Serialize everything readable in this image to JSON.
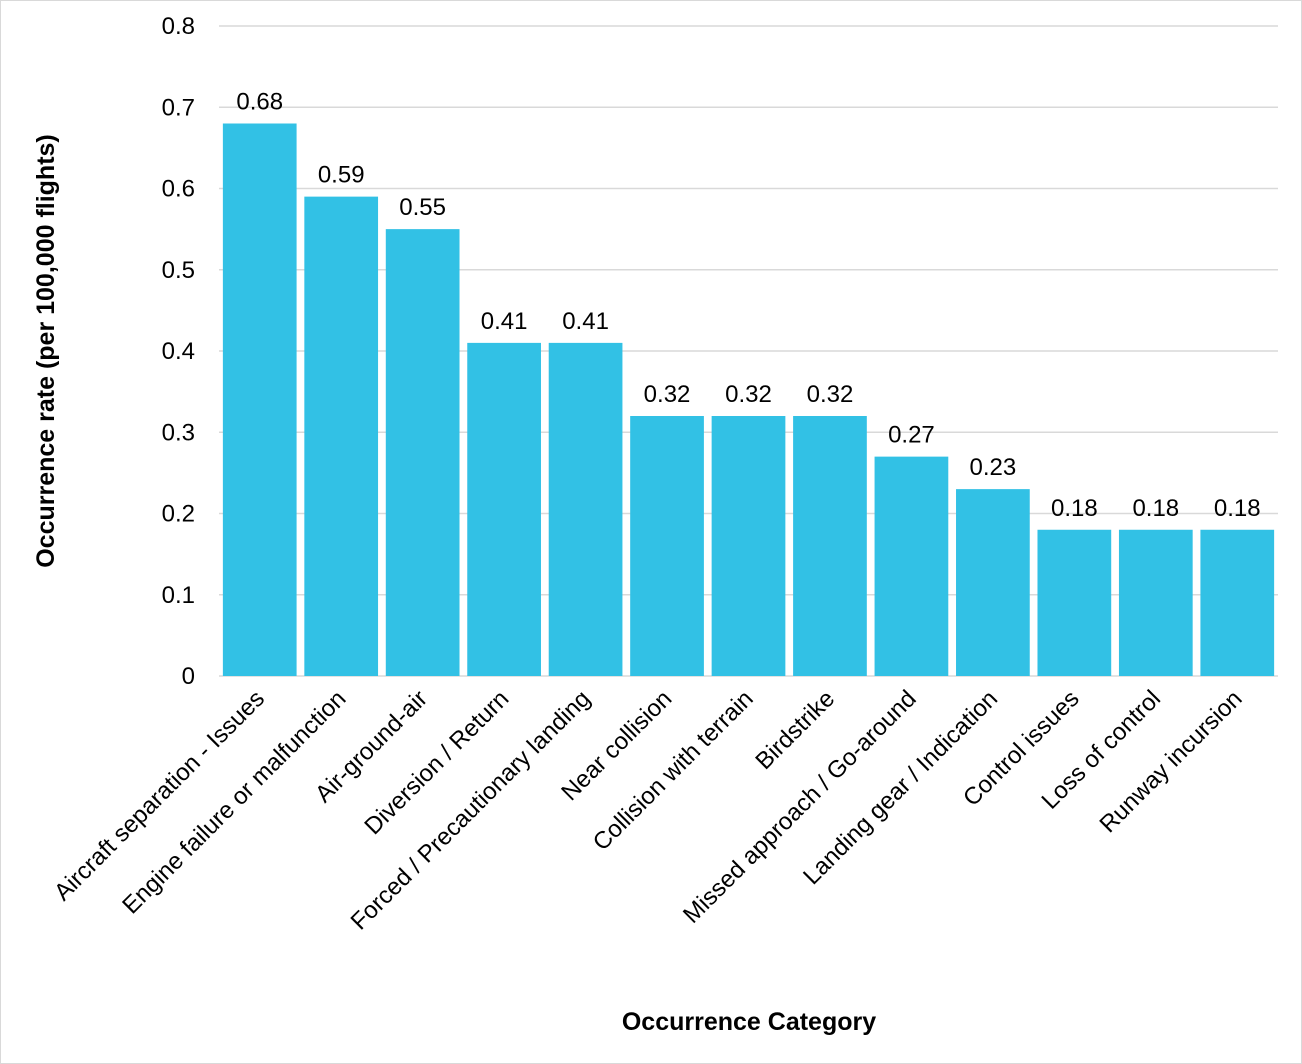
{
  "chart_data": {
    "type": "bar",
    "title": "",
    "xlabel": "Occurrence Category",
    "ylabel": "Occurrence rate (per 100,000 flights)",
    "ylim": [
      0,
      0.8
    ],
    "yticks": [
      "0",
      "0.1",
      "0.2",
      "0.3",
      "0.4",
      "0.5",
      "0.6",
      "0.7",
      "0.8"
    ],
    "grid": true,
    "bar_color": "#32C1E5",
    "categories": [
      "Aircraft separation - Issues",
      "Engine failure or malfunction",
      "Air-ground-air",
      "Diversion / Return",
      "Forced / Precautionary landing",
      "Near collision",
      "Collision with terrain",
      "Birdstrike",
      "Missed approach / Go-around",
      "Landing gear / Indication",
      "Control issues",
      "Loss of control",
      "Runway incursion"
    ],
    "values": [
      0.68,
      0.59,
      0.55,
      0.41,
      0.41,
      0.32,
      0.32,
      0.32,
      0.27,
      0.23,
      0.18,
      0.18,
      0.18
    ],
    "data_labels": [
      "0.68",
      "0.59",
      "0.55",
      "0.41",
      "0.41",
      "0.32",
      "0.32",
      "0.32",
      "0.27",
      "0.23",
      "0.18",
      "0.18",
      "0.18"
    ]
  }
}
